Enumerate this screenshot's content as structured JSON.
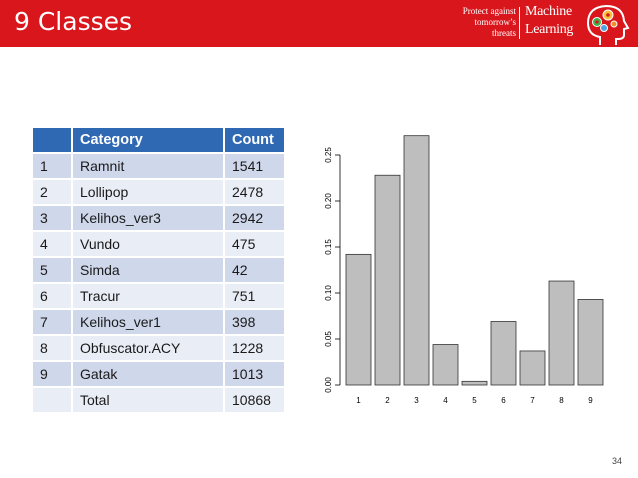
{
  "slide": {
    "title": "9 Classes",
    "page_number": "34"
  },
  "brand": {
    "tagline": [
      "Protect against",
      "tomorrow’s",
      "threats"
    ],
    "name": [
      "Machine",
      "Learning"
    ],
    "logo_icon": "gear-head-icon"
  },
  "table": {
    "headers": [
      "",
      "Category",
      "Count"
    ],
    "rows": [
      [
        "1",
        "Ramnit",
        "1541"
      ],
      [
        "2",
        "Lollipop",
        "2478"
      ],
      [
        "3",
        "Kelihos_ver3",
        "2942"
      ],
      [
        "4",
        "Vundo",
        "475"
      ],
      [
        "5",
        "Simda",
        "42"
      ],
      [
        "6",
        "Tracur",
        "751"
      ],
      [
        "7",
        "Kelihos_ver1",
        "398"
      ],
      [
        "8",
        "Obfuscator.ACY",
        "1228"
      ],
      [
        "9",
        "Gatak",
        "1013"
      ],
      [
        "",
        "Total",
        "10868"
      ]
    ]
  },
  "colors": {
    "header_bar": "#d9161c",
    "table_header": "#2f69b3",
    "row_odd": "#cfd7eb",
    "row_even": "#e9edf6",
    "bar_fill": "#bebebe"
  },
  "chart_data": {
    "type": "bar",
    "categories": [
      "1",
      "2",
      "3",
      "4",
      "5",
      "6",
      "7",
      "8",
      "9"
    ],
    "values": [
      0.142,
      0.228,
      0.271,
      0.044,
      0.004,
      0.069,
      0.037,
      0.113,
      0.093
    ],
    "yticks": [
      "0.00",
      "0.05",
      "0.10",
      "0.15",
      "0.20",
      "0.25"
    ],
    "ylim": [
      0,
      0.25
    ],
    "title": "",
    "xlabel": "",
    "ylabel": "",
    "grid": false
  }
}
